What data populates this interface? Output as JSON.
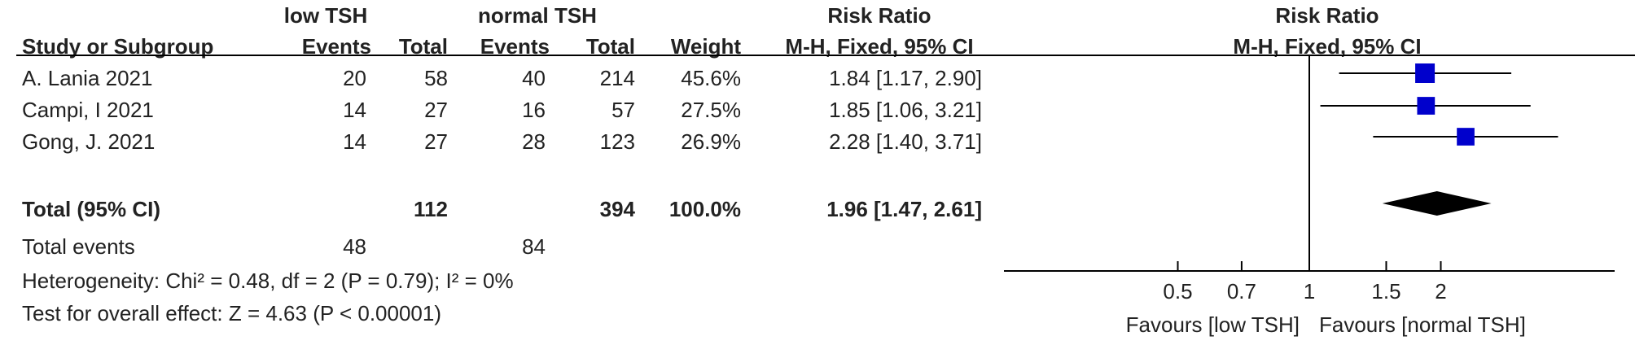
{
  "header": {
    "group1": "low TSH",
    "group2": "normal TSH",
    "rr_left": "Risk Ratio",
    "rr_right": "Risk Ratio",
    "study_col": "Study or Subgroup",
    "events1": "Events",
    "total1": "Total",
    "events2": "Events",
    "total2": "Total",
    "weight": "Weight",
    "method_left": "M-H, Fixed, 95% CI",
    "method_right": "M-H, Fixed, 95% CI"
  },
  "studies": [
    {
      "name": "A. Lania 2021",
      "e1": "20",
      "t1": "58",
      "e2": "40",
      "t2": "214",
      "weight": "45.6%",
      "ci_text": "1.84 [1.17, 2.90]"
    },
    {
      "name": "Campi, I 2021",
      "e1": "14",
      "t1": "27",
      "e2": "16",
      "t2": "57",
      "weight": "27.5%",
      "ci_text": "1.85 [1.06, 3.21]"
    },
    {
      "name": "Gong, J. 2021",
      "e1": "14",
      "t1": "27",
      "e2": "28",
      "t2": "123",
      "weight": "26.9%",
      "ci_text": "2.28 [1.40, 3.71]"
    }
  ],
  "total": {
    "label": "Total (95% CI)",
    "t1": "112",
    "t2": "394",
    "weight": "100.0%",
    "ci_text": "1.96 [1.47, 2.61]"
  },
  "events": {
    "label": "Total events",
    "e1": "48",
    "e2": "84"
  },
  "heterogeneity": "Heterogeneity: Chi² = 0.48, df = 2 (P = 0.79); I² = 0%",
  "overall": "Test for overall effect: Z = 4.63 (P < 0.00001)",
  "favours_left": "Favours [low TSH]",
  "favours_right": "Favours [normal TSH]",
  "colors": {
    "marker": "#0000cc",
    "diamond": "#000000",
    "line": "#000000"
  },
  "chart_data": {
    "type": "forest",
    "scale": "log",
    "xlim": [
      0.2,
      5
    ],
    "null_value": 1,
    "ticks": [
      {
        "value": 0.5,
        "label": "0.5"
      },
      {
        "value": 0.7,
        "label": "0.7"
      },
      {
        "value": 1,
        "label": "1"
      },
      {
        "value": 1.5,
        "label": "1.5"
      },
      {
        "value": 2,
        "label": "2"
      }
    ],
    "studies": [
      {
        "rr": 1.84,
        "lo": 1.17,
        "hi": 2.9,
        "weight": 45.6
      },
      {
        "rr": 1.85,
        "lo": 1.06,
        "hi": 3.21,
        "weight": 27.5
      },
      {
        "rr": 2.28,
        "lo": 1.4,
        "hi": 3.71,
        "weight": 26.9
      }
    ],
    "pooled": {
      "rr": 1.96,
      "lo": 1.47,
      "hi": 2.61
    }
  }
}
